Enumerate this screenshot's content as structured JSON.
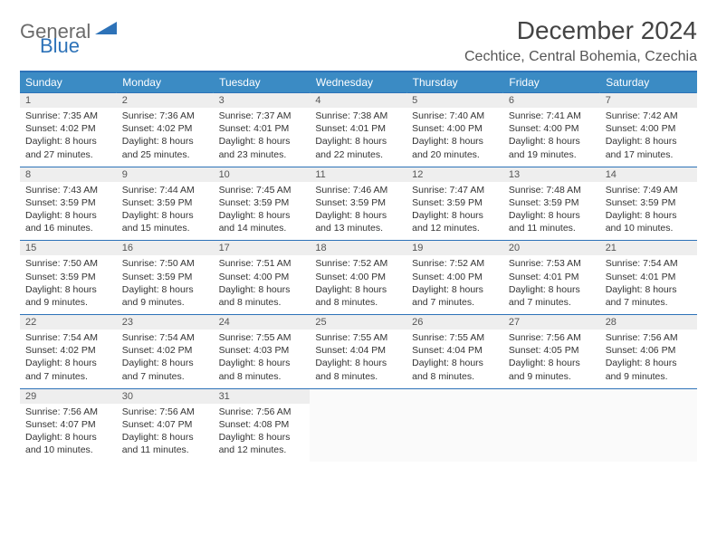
{
  "logo": {
    "text1": "General",
    "text2": "Blue"
  },
  "title": "December 2024",
  "location": "Cechtice, Central Bohemia, Czechia",
  "colors": {
    "header_bg": "#3b8bc4",
    "header_text": "#ffffff",
    "border": "#2d72b8",
    "daynum_bg": "#eeeeee",
    "body_text": "#333333"
  },
  "day_headers": [
    "Sunday",
    "Monday",
    "Tuesday",
    "Wednesday",
    "Thursday",
    "Friday",
    "Saturday"
  ],
  "weeks": [
    [
      {
        "n": "1",
        "sr": "Sunrise: 7:35 AM",
        "ss": "Sunset: 4:02 PM",
        "dl": "Daylight: 8 hours and 27 minutes."
      },
      {
        "n": "2",
        "sr": "Sunrise: 7:36 AM",
        "ss": "Sunset: 4:02 PM",
        "dl": "Daylight: 8 hours and 25 minutes."
      },
      {
        "n": "3",
        "sr": "Sunrise: 7:37 AM",
        "ss": "Sunset: 4:01 PM",
        "dl": "Daylight: 8 hours and 23 minutes."
      },
      {
        "n": "4",
        "sr": "Sunrise: 7:38 AM",
        "ss": "Sunset: 4:01 PM",
        "dl": "Daylight: 8 hours and 22 minutes."
      },
      {
        "n": "5",
        "sr": "Sunrise: 7:40 AM",
        "ss": "Sunset: 4:00 PM",
        "dl": "Daylight: 8 hours and 20 minutes."
      },
      {
        "n": "6",
        "sr": "Sunrise: 7:41 AM",
        "ss": "Sunset: 4:00 PM",
        "dl": "Daylight: 8 hours and 19 minutes."
      },
      {
        "n": "7",
        "sr": "Sunrise: 7:42 AM",
        "ss": "Sunset: 4:00 PM",
        "dl": "Daylight: 8 hours and 17 minutes."
      }
    ],
    [
      {
        "n": "8",
        "sr": "Sunrise: 7:43 AM",
        "ss": "Sunset: 3:59 PM",
        "dl": "Daylight: 8 hours and 16 minutes."
      },
      {
        "n": "9",
        "sr": "Sunrise: 7:44 AM",
        "ss": "Sunset: 3:59 PM",
        "dl": "Daylight: 8 hours and 15 minutes."
      },
      {
        "n": "10",
        "sr": "Sunrise: 7:45 AM",
        "ss": "Sunset: 3:59 PM",
        "dl": "Daylight: 8 hours and 14 minutes."
      },
      {
        "n": "11",
        "sr": "Sunrise: 7:46 AM",
        "ss": "Sunset: 3:59 PM",
        "dl": "Daylight: 8 hours and 13 minutes."
      },
      {
        "n": "12",
        "sr": "Sunrise: 7:47 AM",
        "ss": "Sunset: 3:59 PM",
        "dl": "Daylight: 8 hours and 12 minutes."
      },
      {
        "n": "13",
        "sr": "Sunrise: 7:48 AM",
        "ss": "Sunset: 3:59 PM",
        "dl": "Daylight: 8 hours and 11 minutes."
      },
      {
        "n": "14",
        "sr": "Sunrise: 7:49 AM",
        "ss": "Sunset: 3:59 PM",
        "dl": "Daylight: 8 hours and 10 minutes."
      }
    ],
    [
      {
        "n": "15",
        "sr": "Sunrise: 7:50 AM",
        "ss": "Sunset: 3:59 PM",
        "dl": "Daylight: 8 hours and 9 minutes."
      },
      {
        "n": "16",
        "sr": "Sunrise: 7:50 AM",
        "ss": "Sunset: 3:59 PM",
        "dl": "Daylight: 8 hours and 9 minutes."
      },
      {
        "n": "17",
        "sr": "Sunrise: 7:51 AM",
        "ss": "Sunset: 4:00 PM",
        "dl": "Daylight: 8 hours and 8 minutes."
      },
      {
        "n": "18",
        "sr": "Sunrise: 7:52 AM",
        "ss": "Sunset: 4:00 PM",
        "dl": "Daylight: 8 hours and 8 minutes."
      },
      {
        "n": "19",
        "sr": "Sunrise: 7:52 AM",
        "ss": "Sunset: 4:00 PM",
        "dl": "Daylight: 8 hours and 7 minutes."
      },
      {
        "n": "20",
        "sr": "Sunrise: 7:53 AM",
        "ss": "Sunset: 4:01 PM",
        "dl": "Daylight: 8 hours and 7 minutes."
      },
      {
        "n": "21",
        "sr": "Sunrise: 7:54 AM",
        "ss": "Sunset: 4:01 PM",
        "dl": "Daylight: 8 hours and 7 minutes."
      }
    ],
    [
      {
        "n": "22",
        "sr": "Sunrise: 7:54 AM",
        "ss": "Sunset: 4:02 PM",
        "dl": "Daylight: 8 hours and 7 minutes."
      },
      {
        "n": "23",
        "sr": "Sunrise: 7:54 AM",
        "ss": "Sunset: 4:02 PM",
        "dl": "Daylight: 8 hours and 7 minutes."
      },
      {
        "n": "24",
        "sr": "Sunrise: 7:55 AM",
        "ss": "Sunset: 4:03 PM",
        "dl": "Daylight: 8 hours and 8 minutes."
      },
      {
        "n": "25",
        "sr": "Sunrise: 7:55 AM",
        "ss": "Sunset: 4:04 PM",
        "dl": "Daylight: 8 hours and 8 minutes."
      },
      {
        "n": "26",
        "sr": "Sunrise: 7:55 AM",
        "ss": "Sunset: 4:04 PM",
        "dl": "Daylight: 8 hours and 8 minutes."
      },
      {
        "n": "27",
        "sr": "Sunrise: 7:56 AM",
        "ss": "Sunset: 4:05 PM",
        "dl": "Daylight: 8 hours and 9 minutes."
      },
      {
        "n": "28",
        "sr": "Sunrise: 7:56 AM",
        "ss": "Sunset: 4:06 PM",
        "dl": "Daylight: 8 hours and 9 minutes."
      }
    ],
    [
      {
        "n": "29",
        "sr": "Sunrise: 7:56 AM",
        "ss": "Sunset: 4:07 PM",
        "dl": "Daylight: 8 hours and 10 minutes."
      },
      {
        "n": "30",
        "sr": "Sunrise: 7:56 AM",
        "ss": "Sunset: 4:07 PM",
        "dl": "Daylight: 8 hours and 11 minutes."
      },
      {
        "n": "31",
        "sr": "Sunrise: 7:56 AM",
        "ss": "Sunset: 4:08 PM",
        "dl": "Daylight: 8 hours and 12 minutes."
      },
      null,
      null,
      null,
      null
    ]
  ]
}
